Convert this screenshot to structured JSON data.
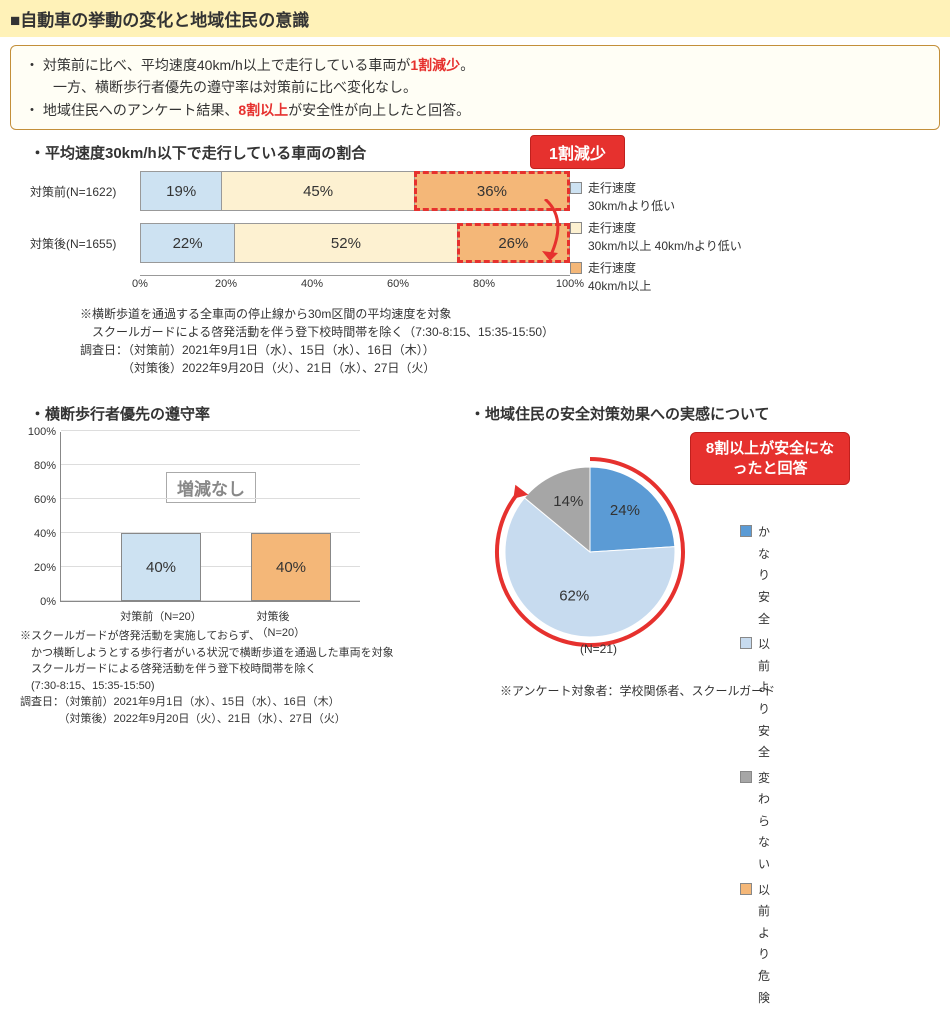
{
  "title": "■自動車の挙動の変化と地域住民の意識",
  "summary": {
    "line1a": "・ 対策前に比べ、平均速度40km/h以上で走行している車両が",
    "line1b": "1割減少",
    "line1c": "。",
    "line2": "　　一方、横断歩行者優先の遵守率は対策前に比べ変化なし。",
    "line3a": "・ 地域住民へのアンケート結果、",
    "line3b": "8割以上",
    "line3c": "が安全性が向上したと回答。"
  },
  "chart1": {
    "title": "・平均速度30km/h以下で走行している車両の割合",
    "callout": "1割減少",
    "rows": [
      {
        "label": "対策前(N=1622)",
        "values": [
          19,
          45,
          36
        ],
        "dashed": [
          false,
          false,
          true
        ]
      },
      {
        "label": "対策後(N=1655)",
        "values": [
          22,
          52,
          26
        ],
        "dashed": [
          false,
          false,
          true
        ]
      }
    ],
    "colors": [
      "#cde2f2",
      "#fdf1d1",
      "#f4b778"
    ],
    "xticks": [
      "0%",
      "20%",
      "40%",
      "60%",
      "80%",
      "100%"
    ],
    "legend": [
      {
        "label": "走行速度",
        "sub": "30km/hより低い",
        "color": "#cde2f2"
      },
      {
        "label": "走行速度",
        "sub": "30km/h以上 40km/hより低い",
        "color": "#fdf1d1"
      },
      {
        "label": "走行速度",
        "sub": "40km/h以上",
        "color": "#f4b778"
      }
    ],
    "notes": [
      "※横断歩道を通過する全車両の停止線から30m区間の平均速度を対象",
      "　スクールガードによる啓発活動を伴う登下校時間帯を除く（7:30-8:15、15:35-15:50）",
      "調査日：（対策前）2021年9月1日（水）、15日（水）、16日（木））",
      "　　　　（対策後）2022年9月20日（火）、21日（水）、27日（火）"
    ]
  },
  "chart2": {
    "title": "・横断歩行者優先の遵守率",
    "ylim": [
      0,
      100
    ],
    "ytick_step": 20,
    "bars": [
      {
        "label": "対策前（N=20）",
        "value": 40,
        "color": "#cde2f2"
      },
      {
        "label": "対策後（N=20）",
        "value": 40,
        "color": "#f4b778"
      }
    ],
    "center_note": "増減なし",
    "notes": [
      "※スクールガードが啓発活動を実施しておらず、",
      "　かつ横断しようとする歩行者がいる状況で横断歩道を通過した車両を対象",
      "　スクールガードによる啓発活動を伴う登下校時間帯を除く",
      "　(7:30-8:15、15:35-15:50)",
      "調査日：（対策前）2021年9月1日（水）、15日（水）、16日（木）",
      "　　　　（対策後）2022年9月20日（火）、21日（水）、27日（火）"
    ]
  },
  "chart3": {
    "title": "・地域住民の安全対策効果への実感について",
    "callout": "8割以上が安全になったと回答",
    "slices": [
      {
        "label": "かなり安全",
        "value": 24,
        "color": "#5b9bd5"
      },
      {
        "label": "以前より安全",
        "value": 62,
        "color": "#c7dbef"
      },
      {
        "label": "変わらない",
        "value": 14,
        "color": "#a6a6a6"
      },
      {
        "label": "以前より危険",
        "value": 0,
        "color": "#f4b778"
      }
    ],
    "n_label": "(N=21)",
    "note": "※アンケート対象者：学校関係者、スクールガード"
  }
}
